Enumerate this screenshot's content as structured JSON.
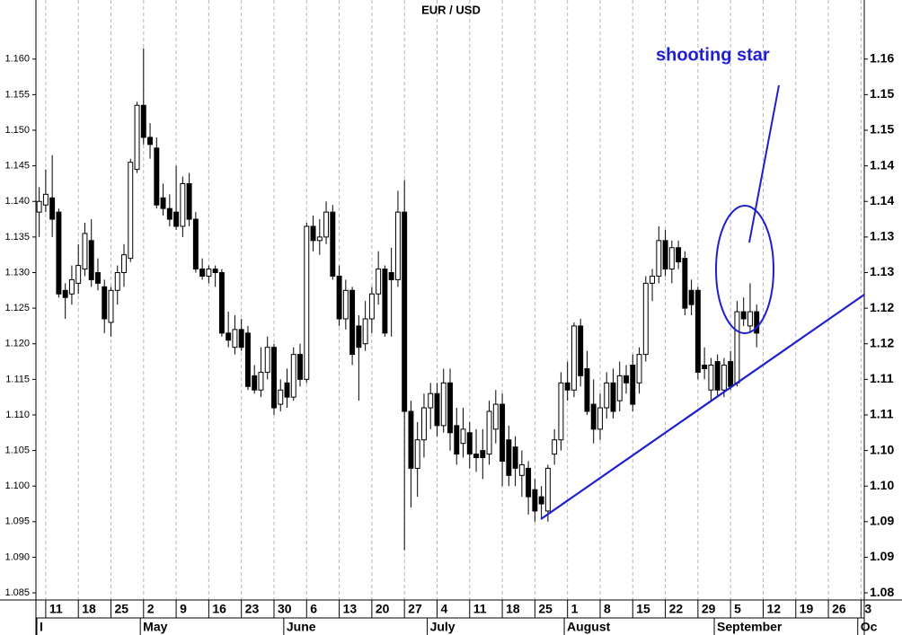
{
  "chart_data": {
    "type": "candlestick",
    "title": "EUR / USD",
    "annotation": "shooting star",
    "annotation_color": "#1f1fcf",
    "up_color": "#ffffff",
    "down_color": "#000000",
    "grid": true,
    "ylim": [
      1.084,
      1.1683
    ],
    "yticks": [
      1.085,
      {
        "value": 1.09,
        "label": "1.090"
      },
      1.095,
      {
        "value": 1.1,
        "label": "1.100"
      },
      1.105,
      {
        "value": 1.11,
        "label": "1.110"
      },
      1.115,
      {
        "value": 1.12,
        "label": "1.120"
      },
      1.125,
      {
        "value": 1.13,
        "label": "1.130"
      },
      1.135,
      {
        "value": 1.14,
        "label": "1.140"
      },
      1.145,
      {
        "value": 1.15,
        "label": "1.150"
      },
      1.155,
      {
        "value": 1.16,
        "label": "1.160"
      }
    ],
    "y2lim": [
      1.084,
      1.1683
    ],
    "y2ticks": [
      {
        "value": 1.085,
        "label": "1.08"
      },
      {
        "value": 1.09,
        "label": "1.09"
      },
      {
        "value": 1.095,
        "label": "1.09"
      },
      {
        "value": 1.1,
        "label": "1.10"
      },
      {
        "value": 1.105,
        "label": "1.10"
      },
      {
        "value": 1.11,
        "label": "1.11"
      },
      {
        "value": 1.115,
        "label": "1.11"
      },
      {
        "value": 1.12,
        "label": "1.12"
      },
      {
        "value": 1.125,
        "label": "1.12"
      },
      {
        "value": 1.13,
        "label": "1.13"
      },
      {
        "value": 1.135,
        "label": "1.13"
      },
      {
        "value": 1.14,
        "label": "1.14"
      },
      {
        "value": 1.145,
        "label": "1.14"
      },
      {
        "value": 1.15,
        "label": "1.15"
      },
      {
        "value": 1.155,
        "label": "1.15"
      },
      {
        "value": 1.16,
        "label": "1.16"
      }
    ],
    "categories": [
      null,
      "11",
      null,
      null,
      null,
      null,
      "18",
      null,
      null,
      null,
      null,
      "25",
      null,
      null,
      null,
      null,
      "2",
      null,
      null,
      null,
      null,
      "9",
      null,
      null,
      null,
      null,
      "16",
      null,
      null,
      null,
      null,
      "23",
      null,
      null,
      null,
      null,
      "30",
      null,
      null,
      null,
      null,
      "6",
      null,
      null,
      null,
      null,
      "13",
      null,
      null,
      null,
      null,
      "20",
      null,
      null,
      null,
      null,
      "27",
      null,
      null,
      null,
      null,
      "4",
      null,
      null,
      null,
      null,
      "11",
      null,
      null,
      null,
      null,
      "18",
      null,
      null,
      null,
      null,
      "25",
      null,
      null,
      null,
      null,
      "1",
      null,
      null,
      null,
      null,
      "8",
      null,
      null,
      null,
      null,
      "15",
      null,
      null,
      null,
      null,
      "22",
      null,
      null,
      null,
      null,
      "29",
      null,
      null,
      null,
      null,
      "5",
      null,
      null,
      null,
      null,
      "12",
      null,
      null,
      null,
      null,
      "19",
      null,
      null,
      null,
      null,
      "26",
      null,
      null,
      null,
      null,
      "3"
    ],
    "months": [
      "I",
      null,
      null,
      null,
      null,
      null,
      null,
      null,
      null,
      null,
      null,
      null,
      null,
      null,
      null,
      null,
      "May",
      null,
      null,
      null,
      null,
      null,
      null,
      null,
      null,
      null,
      null,
      null,
      null,
      null,
      null,
      null,
      null,
      null,
      null,
      null,
      null,
      null,
      "June",
      null,
      null,
      null,
      null,
      null,
      null,
      null,
      null,
      null,
      null,
      null,
      null,
      null,
      null,
      null,
      null,
      null,
      null,
      null,
      null,
      null,
      "July",
      null,
      null,
      null,
      null,
      null,
      null,
      null,
      null,
      null,
      null,
      null,
      null,
      null,
      null,
      null,
      null,
      null,
      null,
      null,
      null,
      "August",
      null,
      null,
      null,
      null,
      null,
      null,
      null,
      null,
      null,
      null,
      null,
      null,
      null,
      null,
      null,
      null,
      null,
      null,
      null,
      null,
      null,
      null,
      "September",
      null,
      null,
      null,
      null,
      null,
      null,
      null,
      null,
      null,
      null,
      null,
      null,
      null,
      null,
      null,
      null,
      null,
      null,
      null,
      null,
      null,
      "Oc"
    ],
    "open": [
      1.1385,
      1.1395,
      1.1405,
      1.1385,
      1.1275,
      1.127,
      1.1285,
      1.1305,
      1.1345,
      1.13,
      1.128,
      1.123,
      1.1275,
      1.13,
      1.132,
      1.1445,
      1.1535,
      1.149,
      1.1475,
      1.1405,
      1.139,
      1.1385,
      1.1365,
      1.1425,
      1.1375,
      1.1305,
      1.1295,
      1.1305,
      1.13,
      1.1215,
      1.1195,
      1.122,
      1.1215,
      1.1155,
      1.1135,
      1.116,
      1.1195,
      1.1115,
      1.1145,
      1.1125,
      1.1185,
      1.115,
      1.1365,
      1.1345,
      1.135,
      1.1385,
      1.1295,
      1.1235,
      1.1275,
      1.1225,
      1.12,
      1.1235,
      1.127,
      1.1305,
      1.13,
      1.129,
      1.1385,
      1.1105,
      1.1025,
      1.1065,
      1.111,
      1.113,
      1.1085,
      1.1145,
      1.1085,
      1.106,
      1.1075,
      1.1045,
      1.105,
      1.1045,
      1.108,
      1.1115,
      1.1065,
      1.1055,
      1.1015,
      1.1025,
      1.0995,
      1.0985,
      1.0965,
      1.1045,
      1.1065,
      1.1145,
      1.1135,
      1.1225,
      1.1165,
      1.1115,
      1.108,
      1.111,
      1.1145,
      1.112,
      1.1155,
      1.117,
      1.1145,
      1.1185,
      1.1285,
      1.1295,
      1.1345,
      1.1305,
      1.1335,
      1.132,
      1.1275,
      1.1275,
      1.117,
      1.1135,
      1.1175,
      1.1135,
      1.1175,
      1.1145,
      1.1245,
      1.1225,
      1.1245,
      null,
      null,
      null,
      null,
      null,
      null,
      null,
      null,
      null,
      null,
      null,
      null,
      null,
      null,
      null,
      null
    ],
    "high": [
      1.142,
      1.1445,
      1.1465,
      1.139,
      1.1285,
      1.131,
      1.134,
      1.137,
      1.1375,
      1.132,
      1.129,
      1.128,
      1.131,
      1.134,
      1.146,
      1.154,
      1.1615,
      1.151,
      1.149,
      1.1425,
      1.141,
      1.145,
      1.1435,
      1.144,
      1.1385,
      1.132,
      1.131,
      1.131,
      1.1305,
      1.1245,
      1.124,
      1.1235,
      1.1225,
      1.117,
      1.1195,
      1.121,
      1.12,
      1.115,
      1.1165,
      1.1195,
      1.12,
      1.137,
      1.138,
      1.1375,
      1.14,
      1.1395,
      1.131,
      1.129,
      1.128,
      1.124,
      1.126,
      1.128,
      1.133,
      1.131,
      1.1335,
      1.1415,
      1.143,
      1.112,
      1.109,
      1.113,
      1.1145,
      1.1145,
      1.1165,
      1.1165,
      1.111,
      1.111,
      1.109,
      1.108,
      1.108,
      1.112,
      1.1135,
      1.113,
      1.1085,
      1.107,
      1.105,
      1.1035,
      1.101,
      1.1,
      1.103,
      1.108,
      1.116,
      1.1175,
      1.123,
      1.1235,
      1.119,
      1.115,
      1.113,
      1.116,
      1.1165,
      1.1175,
      1.117,
      1.1185,
      1.1195,
      1.1295,
      1.1305,
      1.1365,
      1.136,
      1.1345,
      1.1345,
      1.133,
      1.129,
      1.128,
      1.1195,
      1.118,
      1.1185,
      1.118,
      1.119,
      1.126,
      1.1265,
      1.1285,
      1.1255,
      null,
      null,
      null,
      null,
      null,
      null,
      null,
      null,
      null,
      null,
      null,
      null,
      null,
      null,
      null,
      null
    ],
    "low": [
      1.135,
      1.1385,
      1.135,
      1.1265,
      1.1235,
      1.1255,
      1.127,
      1.1295,
      1.128,
      1.1275,
      1.1215,
      1.121,
      1.1255,
      1.128,
      1.1315,
      1.144,
      1.148,
      1.146,
      1.139,
      1.138,
      1.1365,
      1.136,
      1.135,
      1.1365,
      1.13,
      1.129,
      1.1285,
      1.128,
      1.121,
      1.1195,
      1.1185,
      1.119,
      1.1135,
      1.113,
      1.1125,
      1.115,
      1.11,
      1.1105,
      1.111,
      1.112,
      1.114,
      1.1145,
      1.133,
      1.1325,
      1.134,
      1.129,
      1.1225,
      1.122,
      1.117,
      1.112,
      1.119,
      1.1215,
      1.1255,
      1.121,
      1.121,
      1.128,
      1.091,
      1.097,
      1.0985,
      1.104,
      1.108,
      1.107,
      1.1075,
      1.105,
      1.103,
      1.104,
      1.1025,
      1.102,
      1.101,
      1.103,
      1.106,
      1.1,
      1.1,
      1.1,
      1.0985,
      1.096,
      1.095,
      1.0955,
      1.095,
      1.103,
      1.105,
      1.112,
      1.1125,
      1.114,
      1.11,
      1.106,
      1.1065,
      1.1095,
      1.1095,
      1.1105,
      1.113,
      1.1105,
      1.113,
      1.1175,
      1.126,
      1.1285,
      1.1295,
      1.1285,
      1.1305,
      1.124,
      1.124,
      1.115,
      1.115,
      1.112,
      1.1125,
      1.1125,
      1.1135,
      1.114,
      1.1225,
      1.1215,
      1.1195,
      null,
      null,
      null,
      null,
      null,
      null,
      null,
      null,
      null,
      null,
      null,
      null,
      null,
      null,
      null,
      null
    ],
    "close": [
      1.14,
      1.141,
      1.1375,
      1.127,
      1.1265,
      1.129,
      1.131,
      1.1355,
      1.129,
      1.1285,
      1.1235,
      1.1275,
      1.13,
      1.1325,
      1.1455,
      1.1535,
      1.149,
      1.148,
      1.1395,
      1.139,
      1.1375,
      1.1365,
      1.1425,
      1.1375,
      1.1305,
      1.1295,
      1.1305,
      1.13,
      1.1215,
      1.1205,
      1.122,
      1.1195,
      1.114,
      1.1135,
      1.116,
      1.1195,
      1.111,
      1.1135,
      1.1125,
      1.1185,
      1.115,
      1.1365,
      1.1345,
      1.135,
      1.1385,
      1.1295,
      1.1235,
      1.1275,
      1.1185,
      1.1195,
      1.1235,
      1.127,
      1.1305,
      1.1215,
      1.129,
      1.1385,
      1.1105,
      1.1025,
      1.1065,
      1.111,
      1.113,
      1.1085,
      1.1145,
      1.1075,
      1.1045,
      1.108,
      1.1045,
      1.104,
      1.104,
      1.1105,
      1.1115,
      1.1035,
      1.1015,
      1.1025,
      1.103,
      1.0985,
      1.0965,
      1.0975,
      1.1025,
      1.1065,
      1.1145,
      1.1135,
      1.1225,
      1.1155,
      1.1105,
      1.108,
      1.111,
      1.1145,
      1.1105,
      1.1155,
      1.1145,
      1.1115,
      1.1185,
      1.1285,
      1.1295,
      1.1345,
      1.1305,
      1.1335,
      1.1315,
      1.125,
      1.1255,
      1.116,
      1.1165,
      1.117,
      1.1135,
      1.117,
      1.114,
      1.1245,
      1.1235,
      1.1245,
      1.1215,
      null,
      null,
      null,
      null,
      null,
      null,
      null,
      null,
      null,
      null,
      null,
      null,
      null,
      null,
      null,
      null
    ]
  }
}
